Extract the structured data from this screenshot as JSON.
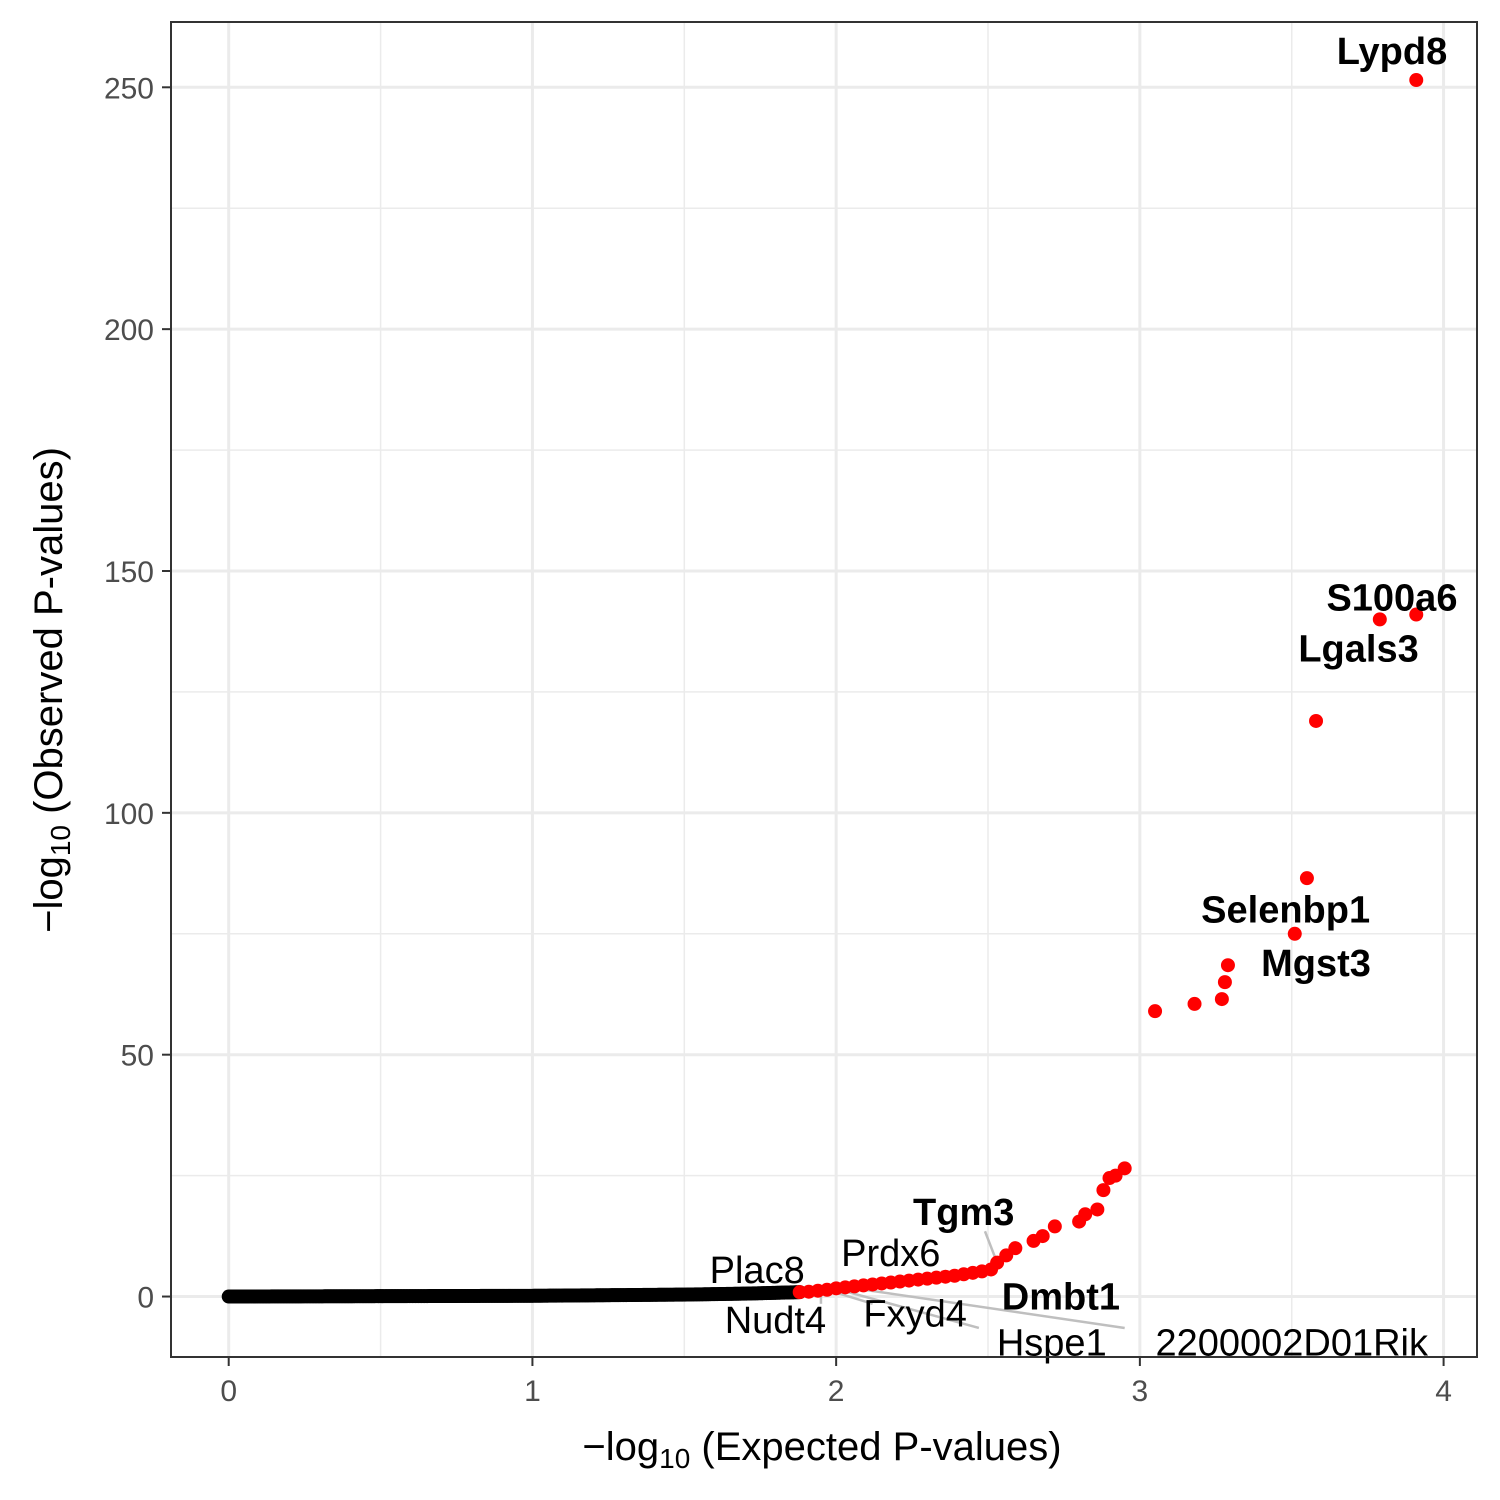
{
  "chart_data": {
    "type": "scatter",
    "title": "",
    "xlabel": {
      "prefix": "−log",
      "sub": "10",
      "suffix": " (Expected P-values)"
    },
    "ylabel": {
      "prefix": "−log",
      "sub": "10",
      "suffix": " (Observed P-values)"
    },
    "xlim": [
      -0.19,
      4.11
    ],
    "ylim": [
      -12.5,
      263.5
    ],
    "x_ticks": [
      0,
      1,
      2,
      3,
      4
    ],
    "y_ticks": [
      0,
      50,
      100,
      150,
      200,
      250
    ],
    "x_tick_labels": [
      "0",
      "1",
      "2",
      "3",
      "4"
    ],
    "y_tick_labels": [
      "0",
      "50",
      "100",
      "150",
      "200",
      "250"
    ],
    "grid": true,
    "colors": {
      "nonsignificant": "#000000",
      "significant": "#ff0000",
      "connector": "#bfbfbf",
      "grid": "#ebebeb",
      "border": "#333333"
    },
    "series": [
      {
        "group": "nonsignificant",
        "color": "#000000",
        "trend": [
          [
            0,
            0
          ],
          [
            1.0,
            0.15
          ],
          [
            1.5,
            0.4
          ],
          [
            1.7,
            0.6
          ],
          [
            1.88,
            0.9
          ]
        ]
      },
      {
        "group": "significant",
        "color": "#ff0000",
        "points": [
          [
            1.88,
            0.9
          ],
          [
            1.91,
            1.0
          ],
          [
            1.94,
            1.2
          ],
          [
            1.97,
            1.4
          ],
          [
            2.0,
            1.7
          ],
          [
            2.03,
            1.9
          ],
          [
            2.06,
            2.1
          ],
          [
            2.09,
            2.3
          ],
          [
            2.12,
            2.5
          ],
          [
            2.15,
            2.7
          ],
          [
            2.18,
            2.9
          ],
          [
            2.21,
            3.1
          ],
          [
            2.24,
            3.3
          ],
          [
            2.27,
            3.5
          ],
          [
            2.3,
            3.7
          ],
          [
            2.33,
            3.9
          ],
          [
            2.36,
            4.1
          ],
          [
            2.39,
            4.3
          ],
          [
            2.42,
            4.6
          ],
          [
            2.45,
            4.9
          ],
          [
            2.48,
            5.2
          ],
          [
            2.51,
            5.6
          ],
          [
            2.53,
            7.0
          ],
          [
            2.56,
            8.5
          ],
          [
            2.59,
            10.0
          ],
          [
            2.65,
            11.5
          ],
          [
            2.68,
            12.5
          ],
          [
            2.72,
            14.5
          ],
          [
            2.8,
            15.5
          ],
          [
            2.82,
            17.0
          ],
          [
            2.86,
            18.0
          ],
          [
            2.88,
            22.0
          ],
          [
            2.9,
            24.5
          ],
          [
            2.92,
            25.0
          ],
          [
            2.95,
            26.5
          ],
          [
            3.05,
            59.0
          ],
          [
            3.18,
            60.5
          ],
          [
            3.27,
            61.5
          ],
          [
            3.28,
            65.0
          ],
          [
            3.29,
            68.5
          ],
          [
            3.51,
            75.0
          ],
          [
            3.55,
            86.5
          ],
          [
            3.58,
            119.0
          ],
          [
            3.79,
            140.0
          ],
          [
            3.91,
            141.0
          ],
          [
            3.91,
            251.5
          ]
        ]
      }
    ],
    "labels": [
      {
        "text": "Lypd8",
        "bold": true,
        "x": 3.91,
        "y": 251.5,
        "lx": 3.83,
        "ly": 257.5
      },
      {
        "text": "S100a6",
        "bold": true,
        "x": 3.91,
        "y": 141.0,
        "lx": 3.83,
        "ly": 144.5
      },
      {
        "text": "Lgals3",
        "bold": true,
        "x": 3.79,
        "y": 140.0,
        "lx": 3.72,
        "ly": 134.0
      },
      {
        "text": "Selenbp1",
        "bold": true,
        "x": 3.51,
        "y": 75.0,
        "lx": 3.48,
        "ly": 80.0
      },
      {
        "text": "Mgst3",
        "bold": true,
        "x": 3.29,
        "y": 68.5,
        "lx": 3.58,
        "ly": 69.0
      },
      {
        "text": "Tgm3",
        "bold": true,
        "x": 2.53,
        "y": 7.0,
        "lx": 2.42,
        "ly": 17.5,
        "line": [
          2.49,
          13.5
        ]
      },
      {
        "text": "Dmbt1",
        "bold": true,
        "x": 2.51,
        "y": 5.6,
        "lx": 2.74,
        "ly": 0.0
      },
      {
        "text": "Prdx6",
        "bold": false,
        "x": 2.1,
        "y": 2.4,
        "lx": 2.18,
        "ly": 9.0
      },
      {
        "text": "Plac8",
        "bold": false,
        "x": 1.9,
        "y": 1.0,
        "lx": 1.74,
        "ly": 5.5
      },
      {
        "text": "Nudt4",
        "bold": false,
        "x": 1.95,
        "y": 1.2,
        "lx": 1.8,
        "ly": -4.8,
        "line": [
          1.95,
          -1.5
        ]
      },
      {
        "text": "Fxyd4",
        "bold": false,
        "x": 1.97,
        "y": 1.4,
        "lx": 2.26,
        "ly": -3.5,
        "line": [
          2.12,
          -1.5
        ]
      },
      {
        "text": "Hspe1",
        "bold": false,
        "x": 2.0,
        "y": 1.6,
        "lx": 2.71,
        "ly": -9.5,
        "line": [
          2.47,
          -6.5
        ]
      },
      {
        "text": "2200002D01Rik",
        "bold": false,
        "x": 2.05,
        "y": 1.8,
        "lx": 3.5,
        "ly": -9.5,
        "line": [
          2.95,
          -6.5
        ]
      }
    ]
  }
}
